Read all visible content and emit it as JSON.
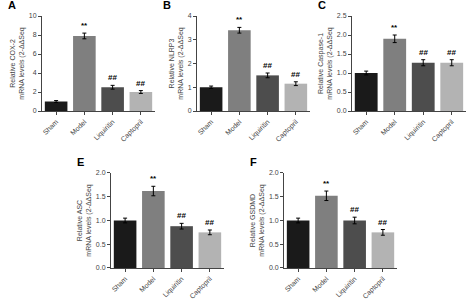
{
  "chart_data": [
    {
      "type": "bar",
      "title": "A",
      "ylabel": "Relative COX-2\nmRNA levels (2-ΔΔSeq",
      "categories": [
        "Sham",
        "Model",
        "Liquiritin",
        "Captopril"
      ],
      "values": [
        1.0,
        7.9,
        2.5,
        2.0
      ],
      "errors": [
        0.1,
        0.3,
        0.2,
        0.15
      ],
      "colors": [
        "#1a1a1a",
        "#7f7f7f",
        "#4d4d4d",
        "#b3b3b3"
      ],
      "ylim": [
        0,
        10
      ],
      "yticks": [
        0,
        2,
        4,
        6,
        8,
        10
      ],
      "grid": false,
      "annotations": [
        {
          "x": 1,
          "text": "**"
        },
        {
          "x": 2,
          "text": "##"
        },
        {
          "x": 3,
          "text": "##"
        }
      ]
    },
    {
      "type": "bar",
      "title": "B",
      "ylabel": "Relative NLRP3\nmRNA levels (2-ΔΔSeq",
      "categories": [
        "Sham",
        "Model",
        "Liquiritin",
        "Captopril"
      ],
      "values": [
        1.0,
        3.4,
        1.5,
        1.15
      ],
      "errors": [
        0.05,
        0.12,
        0.1,
        0.08
      ],
      "colors": [
        "#1a1a1a",
        "#7f7f7f",
        "#4d4d4d",
        "#b3b3b3"
      ],
      "ylim": [
        0,
        4
      ],
      "yticks": [
        0,
        1,
        2,
        3,
        4
      ],
      "grid": false,
      "annotations": [
        {
          "x": 1,
          "text": "**"
        },
        {
          "x": 2,
          "text": "##"
        },
        {
          "x": 3,
          "text": "##"
        }
      ]
    },
    {
      "type": "bar",
      "title": "C",
      "ylabel": "Relative Caspase-1\nmRNA levels (2-ΔΔSeq",
      "categories": [
        "Sham",
        "Model",
        "Liquiritin",
        "Captopril"
      ],
      "values": [
        1.0,
        1.9,
        1.27,
        1.27
      ],
      "errors": [
        0.05,
        0.1,
        0.08,
        0.08
      ],
      "colors": [
        "#1a1a1a",
        "#7f7f7f",
        "#4d4d4d",
        "#b3b3b3"
      ],
      "ylim": [
        0,
        2.5
      ],
      "yticks": [
        {
          "value": 0,
          "label": "0.0"
        },
        0.5,
        {
          "value": 1,
          "label": "1.0"
        },
        1.5,
        {
          "value": 2,
          "label": "2.0"
        },
        2.5
      ],
      "grid": false,
      "annotations": [
        {
          "x": 1,
          "text": "**"
        },
        {
          "x": 2,
          "text": "##"
        },
        {
          "x": 3,
          "text": "##"
        }
      ]
    },
    {
      "type": "bar",
      "title": "E",
      "ylabel": "Relative ASC\nmRNA levels (2-ΔΔSeq",
      "categories": [
        "Sham",
        "Model",
        "Liquiritin",
        "Captopril"
      ],
      "values": [
        1.0,
        1.62,
        0.88,
        0.75
      ],
      "errors": [
        0.05,
        0.1,
        0.06,
        0.05
      ],
      "colors": [
        "#1a1a1a",
        "#7f7f7f",
        "#4d4d4d",
        "#b3b3b3"
      ],
      "ylim": [
        0,
        2.0
      ],
      "yticks": [
        {
          "value": 0,
          "label": "0.0"
        },
        0.5,
        {
          "value": 1,
          "label": "1.0"
        },
        1.5,
        {
          "value": 2,
          "label": "2.0"
        }
      ],
      "grid": false,
      "annotations": [
        {
          "x": 1,
          "text": "**"
        },
        {
          "x": 2,
          "text": "##"
        },
        {
          "x": 3,
          "text": "##"
        }
      ]
    },
    {
      "type": "bar",
      "title": "F",
      "ylabel": "Relative GSDMD\nmRNA levels (2-ΔΔSeq",
      "categories": [
        "Sham",
        "Model",
        "Liquiritin",
        "Captopril"
      ],
      "values": [
        1.0,
        1.52,
        1.0,
        0.75
      ],
      "errors": [
        0.05,
        0.1,
        0.07,
        0.06
      ],
      "colors": [
        "#1a1a1a",
        "#7f7f7f",
        "#4d4d4d",
        "#b3b3b3"
      ],
      "ylim": [
        0,
        2.0
      ],
      "yticks": [
        {
          "value": 0,
          "label": "0.0"
        },
        0.5,
        {
          "value": 1,
          "label": "1.0"
        },
        1.5,
        {
          "value": 2,
          "label": "2.0"
        }
      ],
      "grid": false,
      "annotations": [
        {
          "x": 1,
          "text": "**"
        },
        {
          "x": 2,
          "text": "##"
        },
        {
          "x": 3,
          "text": "##"
        }
      ]
    }
  ]
}
